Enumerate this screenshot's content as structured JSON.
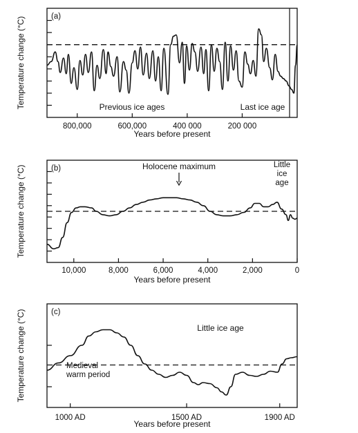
{
  "chart_data": [
    {
      "type": "line",
      "panel_label": "(a)",
      "ylabel": "Temperature change (°C)",
      "xlabel": "Years before present",
      "x_axis_reversed": true,
      "xlim": [
        910000,
        0
      ],
      "ylim": [
        0,
        9
      ],
      "y_ticks": [
        1,
        2,
        3,
        4,
        5,
        6,
        7,
        8
      ],
      "x_ticks": [
        800000,
        600000,
        400000,
        200000
      ],
      "x_tick_labels": [
        "800,000",
        "600,000",
        "400 000",
        "200 000"
      ],
      "reference_line": 6.0,
      "annotations": [
        "Previous ice ages",
        "Last ice age"
      ],
      "series": [
        {
          "x": [
            910000,
            895000,
            880000,
            870000,
            862000,
            850000,
            840000,
            832000,
            822000,
            812000,
            800000,
            790000,
            780000,
            770000,
            760000,
            748000,
            738000,
            728000,
            718000,
            705000,
            695000,
            688000,
            678000,
            668000,
            655000,
            645000,
            632000,
            622000,
            612000,
            600000,
            590000,
            580000,
            570000,
            560000,
            548000,
            538000,
            525000,
            515000,
            505000,
            495000,
            485000,
            470000,
            460000,
            450000,
            440000,
            428000,
            418000,
            410000,
            402000,
            392000,
            382000,
            372000,
            362000,
            350000,
            340000,
            332000,
            322000,
            312000,
            302000,
            292000,
            282000,
            272000,
            262000,
            252000,
            242000,
            232000,
            222000,
            212000,
            200000,
            190000,
            180000,
            170000,
            160000,
            150000,
            140000,
            130000,
            122000,
            112000,
            100000,
            90000,
            80000,
            70000,
            60000,
            50000,
            40000,
            30000,
            20000,
            12000,
            6000,
            0
          ],
          "y": [
            4.3,
            4.6,
            5.4,
            4.6,
            3.7,
            4.9,
            3.6,
            5.2,
            2.8,
            4.1,
            2.3,
            4.7,
            3.5,
            5.2,
            3.7,
            5.4,
            2.2,
            4.3,
            3.2,
            5.6,
            3.6,
            5.4,
            4.2,
            3.4,
            5.0,
            2.1,
            4.6,
            3.9,
            2.0,
            4.5,
            5.5,
            4.0,
            5.8,
            3.5,
            5.3,
            3.2,
            5.5,
            3.0,
            5.0,
            2.2,
            5.7,
            1.9,
            6.0,
            6.7,
            6.8,
            4.5,
            6.2,
            2.8,
            5.9,
            3.9,
            6.1,
            5.4,
            3.8,
            5.8,
            3.6,
            5.6,
            2.2,
            6.0,
            3.8,
            5.7,
            4.6,
            2.3,
            6.2,
            3.0,
            5.9,
            3.9,
            5.5,
            3.0,
            2.5,
            5.4,
            4.4,
            3.6,
            4.7,
            3.4,
            7.3,
            6.8,
            4.6,
            5.7,
            4.1,
            3.1,
            5.2,
            3.8,
            3.4,
            3.2,
            3.0,
            2.6,
            2.3,
            2.0,
            4.3,
            6.0
          ]
        }
      ]
    },
    {
      "type": "line",
      "panel_label": "(b)",
      "ylabel": "Temperature change (°C)",
      "xlabel": "Years before present",
      "x_axis_reversed": true,
      "xlim": [
        11200,
        0
      ],
      "ylim": [
        0,
        9
      ],
      "y_ticks": [
        1,
        2,
        3,
        4,
        5,
        6,
        7,
        8
      ],
      "x_ticks": [
        10000,
        8000,
        6000,
        4000,
        2000,
        0
      ],
      "x_tick_labels": [
        "10,000",
        "8,000",
        "6,000",
        "4,000",
        "2,000",
        "0"
      ],
      "reference_line": 4.5,
      "annotations": [
        "Holocene maximum",
        "Little ice age"
      ],
      "series": [
        {
          "x": [
            11200,
            10900,
            10700,
            10500,
            10300,
            10100,
            9900,
            9700,
            9500,
            9200,
            9000,
            8700,
            8400,
            8100,
            7800,
            7500,
            7200,
            6900,
            6600,
            6300,
            6000,
            5700,
            5400,
            5100,
            4800,
            4500,
            4200,
            3900,
            3600,
            3300,
            3000,
            2700,
            2400,
            2100,
            1900,
            1700,
            1500,
            1300,
            1100,
            900,
            700,
            500,
            400,
            300,
            200,
            100,
            0
          ],
          "y": [
            1.6,
            1.2,
            1.3,
            2.2,
            3.5,
            4.4,
            4.8,
            4.9,
            4.9,
            4.8,
            4.5,
            4.2,
            4.1,
            4.2,
            4.5,
            4.8,
            5.1,
            5.3,
            5.5,
            5.6,
            5.7,
            5.7,
            5.7,
            5.6,
            5.5,
            5.3,
            5.0,
            4.5,
            4.2,
            4.1,
            4.1,
            4.2,
            4.4,
            4.8,
            5.2,
            5.2,
            4.9,
            4.9,
            5.1,
            5.3,
            4.7,
            4.2,
            3.7,
            4.2,
            3.9,
            3.8,
            3.9
          ]
        }
      ]
    },
    {
      "type": "line",
      "panel_label": "(c)",
      "ylabel": "Temperature change (°C)",
      "xlabel": "Years before present",
      "xlim": [
        900,
        1975
      ],
      "ylim": [
        0,
        10
      ],
      "y_ticks": [
        2,
        6
      ],
      "x_ticks": [
        1000,
        1500,
        1900
      ],
      "x_tick_labels": [
        "1000 AD",
        "1500 AD",
        "1900 AD"
      ],
      "reference_line": 4.1,
      "annotations": [
        "Little ice age",
        "Medieval warm period"
      ],
      "series": [
        {
          "x": [
            900,
            950,
            1000,
            1050,
            1080,
            1110,
            1140,
            1170,
            1200,
            1230,
            1260,
            1290,
            1320,
            1350,
            1380,
            1410,
            1440,
            1470,
            1500,
            1530,
            1550,
            1570,
            1600,
            1630,
            1650,
            1670,
            1690,
            1710,
            1740,
            1770,
            1800,
            1830,
            1860,
            1890,
            1910,
            1930,
            1950,
            1975
          ],
          "y": [
            3.6,
            4.3,
            5.0,
            6.0,
            6.9,
            7.3,
            7.5,
            7.5,
            7.2,
            6.8,
            6.0,
            5.0,
            4.2,
            3.6,
            3.2,
            2.9,
            3.1,
            3.4,
            3.1,
            2.4,
            2.2,
            2.4,
            2.3,
            1.9,
            1.5,
            1.2,
            2.0,
            3.2,
            3.4,
            3.1,
            3.0,
            3.2,
            3.5,
            3.4,
            4.2,
            4.7,
            4.8,
            4.9
          ]
        }
      ]
    }
  ]
}
